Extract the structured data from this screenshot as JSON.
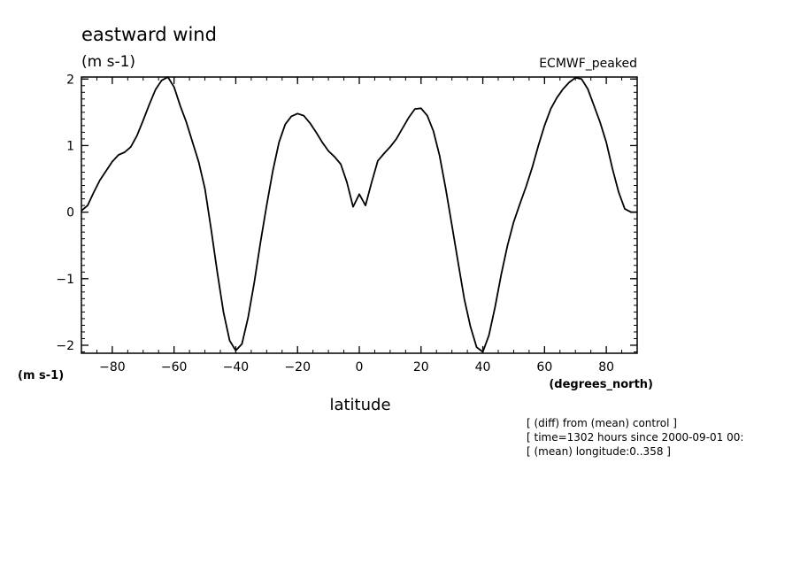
{
  "chart_data": {
    "type": "line",
    "title": "eastward wind",
    "units_label": "(m s-1)",
    "left_units_label": "(m s-1)",
    "dataset_label": "ECMWF_peaked",
    "xlabel": "latitude",
    "xunits_label": "(degrees_north)",
    "xlim": [
      -90,
      90
    ],
    "ylim": [
      -2.12,
      2.03
    ],
    "xticks": [
      -80,
      -60,
      -40,
      -20,
      0,
      20,
      40,
      60,
      80
    ],
    "xtick_labels": [
      "−80",
      "−60",
      "−40",
      "−20",
      "0",
      "20",
      "40",
      "60",
      "80"
    ],
    "yticks": [
      -2,
      -1,
      0,
      1,
      2
    ],
    "ytick_labels": [
      "−2",
      "−1",
      "0",
      "1",
      "2"
    ],
    "grid": false,
    "series": [
      {
        "x": [
          -90,
          -88,
          -86,
          -84,
          -82,
          -80,
          -78,
          -76,
          -74,
          -72,
          -70,
          -68,
          -66,
          -64,
          -62,
          -60,
          -58,
          -56,
          -54,
          -52,
          -50,
          -48,
          -46,
          -44,
          -42,
          -40,
          -38,
          -36,
          -34,
          -32,
          -30,
          -28,
          -26,
          -24,
          -22,
          -20,
          -18,
          -16,
          -14,
          -12,
          -10,
          -8,
          -6,
          -4,
          -2,
          0,
          2,
          4,
          6,
          8,
          10,
          12,
          14,
          16,
          18,
          20,
          22,
          24,
          26,
          28,
          30,
          32,
          34,
          36,
          38,
          40,
          42,
          44,
          46,
          48,
          50,
          52,
          54,
          56,
          58,
          60,
          62,
          64,
          66,
          68,
          70,
          72,
          74,
          76,
          78,
          80,
          82,
          84,
          86,
          88,
          90
        ],
        "values": [
          0.02,
          0.1,
          0.3,
          0.48,
          0.62,
          0.76,
          0.86,
          0.9,
          0.98,
          1.15,
          1.38,
          1.62,
          1.84,
          1.98,
          2.03,
          1.88,
          1.6,
          1.35,
          1.05,
          0.75,
          0.35,
          -0.25,
          -0.9,
          -1.5,
          -1.93,
          -2.08,
          -1.98,
          -1.58,
          -1.05,
          -0.45,
          0.1,
          0.62,
          1.05,
          1.32,
          1.44,
          1.48,
          1.45,
          1.34,
          1.2,
          1.05,
          0.92,
          0.83,
          0.72,
          0.45,
          0.08,
          0.27,
          0.1,
          0.45,
          0.77,
          0.88,
          0.98,
          1.1,
          1.26,
          1.42,
          1.55,
          1.56,
          1.45,
          1.22,
          0.85,
          0.35,
          -0.2,
          -0.75,
          -1.3,
          -1.72,
          -2.03,
          -2.1,
          -1.85,
          -1.42,
          -0.93,
          -0.5,
          -0.15,
          0.12,
          0.38,
          0.67,
          1.0,
          1.3,
          1.55,
          1.72,
          1.85,
          1.95,
          2.02,
          2.0,
          1.85,
          1.6,
          1.35,
          1.05,
          0.65,
          0.3,
          0.05,
          0.0,
          0.0
        ]
      }
    ]
  },
  "footnotes": [
    "[ (diff) from (mean) control ]",
    "[ time=1302 hours since 2000-09-01 00:",
    "[ (mean) longitude:0..358 ]"
  ]
}
